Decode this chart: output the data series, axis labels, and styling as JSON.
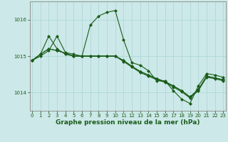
{
  "title": "Graphe pression niveau de la mer (hPa)",
  "background_color": "#cce8e8",
  "grid_color": "#aad4d4",
  "line_color": "#1a5c1a",
  "ylim": [
    1013.5,
    1016.5
  ],
  "yticks": [
    1014,
    1015,
    1016
  ],
  "xlim": [
    -0.3,
    23.3
  ],
  "xticks": [
    0,
    1,
    2,
    3,
    4,
    5,
    6,
    7,
    8,
    9,
    10,
    11,
    12,
    13,
    14,
    15,
    16,
    17,
    18,
    19,
    20,
    21,
    22,
    23
  ],
  "s1": [
    1014.88,
    1015.05,
    1015.55,
    1015.2,
    1015.1,
    1015.0,
    1015.0,
    1015.85,
    1016.1,
    1016.2,
    1016.25,
    1015.5,
    1014.85,
    1014.75,
    1014.6,
    1014.35,
    1014.35,
    1014.1,
    1013.85,
    1013.7,
    1014.2,
    1014.55,
    1014.5,
    1014.45
  ],
  "s2": [
    1014.88,
    1015.0,
    1015.15,
    1015.55,
    1015.1,
    1015.05,
    1015.0,
    1015.0,
    1015.0,
    1015.0,
    1015.0,
    1014.88,
    1014.72,
    1014.58,
    1014.48,
    1014.38,
    1014.3,
    1014.18,
    1014.05,
    1013.9,
    1014.1,
    1014.48,
    1014.42,
    1014.38
  ],
  "s3": [
    1014.88,
    1015.05,
    1015.18,
    1015.12,
    1015.05,
    1015.0,
    1015.0,
    1015.0,
    1015.0,
    1015.0,
    1015.0,
    1014.88,
    1014.72,
    1014.58,
    1014.48,
    1014.38,
    1014.3,
    1014.18,
    1014.05,
    1013.9,
    1014.1,
    1014.48,
    1014.42,
    1014.38
  ],
  "s4": [
    1014.88,
    1015.05,
    1015.18,
    1015.12,
    1015.05,
    1015.0,
    1015.0,
    1015.0,
    1015.0,
    1015.0,
    1015.0,
    1014.88,
    1014.72,
    1014.58,
    1014.48,
    1014.38,
    1014.3,
    1014.18,
    1014.05,
    1013.9,
    1014.1,
    1014.48,
    1014.42,
    1014.38
  ],
  "title_fontsize": 6.5,
  "tick_fontsize": 5.0
}
